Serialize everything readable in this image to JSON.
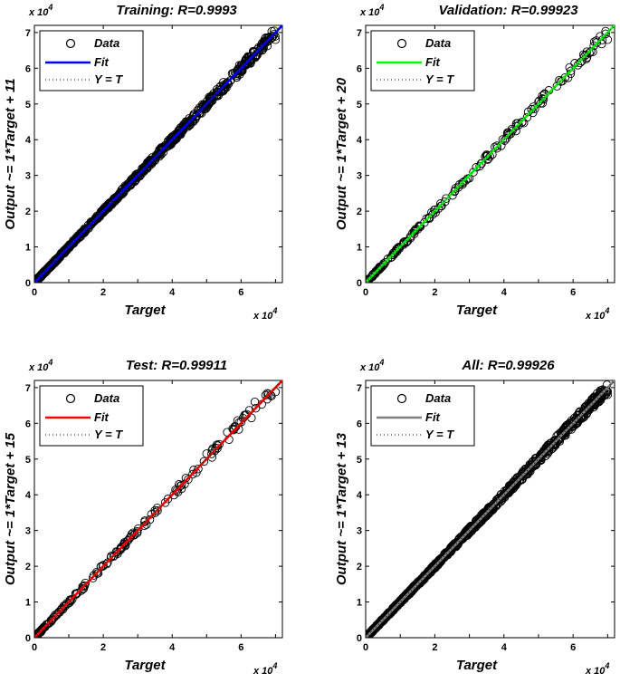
{
  "panels": [
    {
      "title": "Training: R=0.9993",
      "ylabel": "Output ~= 1*Target + 11",
      "xlabel": "Target",
      "x_exponent": "x 10",
      "y_exponent": "x 10",
      "exp_power": "4",
      "fit_color": "#0000ff",
      "legend": [
        "Data",
        "Fit",
        "Y = T"
      ],
      "ticks": [
        "0",
        "1",
        "2",
        "3",
        "4",
        "5",
        "6",
        "7"
      ],
      "xticks": [
        "0",
        "2",
        "4",
        "6"
      ]
    },
    {
      "title": "Validation: R=0.99923",
      "ylabel": "Output ~= 1*Target + 20",
      "xlabel": "Target",
      "x_exponent": "x 10",
      "y_exponent": "x 10",
      "exp_power": "4",
      "fit_color": "#00ff00",
      "legend": [
        "Data",
        "Fit",
        "Y = T"
      ],
      "ticks": [
        "0",
        "1",
        "2",
        "3",
        "4",
        "5",
        "6",
        "7"
      ],
      "xticks": [
        "0",
        "2",
        "4",
        "6"
      ]
    },
    {
      "title": "Test: R=0.99911",
      "ylabel": "Output ~= 1*Target + 15",
      "xlabel": "Target",
      "x_exponent": "x 10",
      "y_exponent": "x 10",
      "exp_power": "4",
      "fit_color": "#ff0000",
      "legend": [
        "Data",
        "Fit",
        "Y = T"
      ],
      "ticks": [
        "0",
        "1",
        "2",
        "3",
        "4",
        "5",
        "6",
        "7"
      ],
      "xticks": [
        "0",
        "2",
        "4",
        "6"
      ]
    },
    {
      "title": "All: R=0.99926",
      "ylabel": "Output ~= 1*Target + 13",
      "xlabel": "Target",
      "x_exponent": "x 10",
      "y_exponent": "x 10",
      "exp_power": "4",
      "fit_color": "#808080",
      "legend": [
        "Data",
        "Fit",
        "Y = T"
      ],
      "ticks": [
        "0",
        "1",
        "2",
        "3",
        "4",
        "5",
        "6",
        "7"
      ],
      "xticks": [
        "0",
        "2",
        "4",
        "6"
      ]
    }
  ],
  "chart_data": [
    {
      "type": "scatter",
      "title": "Training: R=0.9993",
      "xlabel": "Target",
      "ylabel": "Output ~= 1*Target + 11",
      "xlim": [
        0,
        72000
      ],
      "ylim": [
        0,
        72000
      ],
      "series": [
        {
          "name": "Data",
          "points": [
            [
              0,
              0
            ],
            [
              1500,
              1600
            ],
            [
              3000,
              2900
            ],
            [
              5000,
              5200
            ],
            [
              7000,
              6800
            ],
            [
              9000,
              9300
            ],
            [
              11000,
              10800
            ],
            [
              13000,
              13300
            ],
            [
              15000,
              14800
            ],
            [
              17000,
              17200
            ],
            [
              19000,
              19100
            ],
            [
              21000,
              20700
            ],
            [
              23000,
              23300
            ],
            [
              25000,
              25200
            ],
            [
              27000,
              26800
            ],
            [
              29000,
              29300
            ],
            [
              31000,
              30800
            ],
            [
              33000,
              33200
            ],
            [
              35000,
              34900
            ],
            [
              37000,
              37300
            ],
            [
              39000,
              38700
            ],
            [
              41000,
              41400
            ],
            [
              43000,
              42600
            ],
            [
              45000,
              45200
            ],
            [
              47000,
              46700
            ],
            [
              49000,
              49300
            ],
            [
              51000,
              51400
            ],
            [
              53000,
              52500
            ],
            [
              55000,
              55300
            ],
            [
              57000,
              56600
            ],
            [
              59000,
              59400
            ],
            [
              61000,
              60700
            ],
            [
              63000,
              63400
            ],
            [
              65000,
              64500
            ],
            [
              67000,
              67300
            ],
            [
              69000,
              68600
            ],
            [
              70000,
              68000
            ]
          ]
        },
        {
          "name": "Fit",
          "slope": 1,
          "intercept": 11
        },
        {
          "name": "Y = T",
          "slope": 1,
          "intercept": 0
        }
      ]
    },
    {
      "type": "scatter",
      "title": "Validation: R=0.99923",
      "xlabel": "Target",
      "ylabel": "Output ~= 1*Target + 20",
      "xlim": [
        0,
        72000
      ],
      "ylim": [
        0,
        72000
      ],
      "series": [
        {
          "name": "Data",
          "points": [
            [
              0,
              0
            ],
            [
              2000,
              2100
            ],
            [
              5000,
              4800
            ],
            [
              8000,
              8300
            ],
            [
              11000,
              10700
            ],
            [
              14000,
              14300
            ],
            [
              17000,
              16800
            ],
            [
              20000,
              20300
            ],
            [
              23000,
              22700
            ],
            [
              26000,
              26400
            ],
            [
              29000,
              28600
            ],
            [
              32000,
              32300
            ],
            [
              35000,
              35400
            ],
            [
              38000,
              37600
            ],
            [
              41000,
              41500
            ],
            [
              44000,
              44600
            ],
            [
              47000,
              47800
            ],
            [
              50000,
              50600
            ],
            [
              53000,
              53800
            ],
            [
              56000,
              56600
            ],
            [
              59000,
              60200
            ],
            [
              62000,
              61500
            ],
            [
              64000,
              63000
            ],
            [
              66000,
              66300
            ],
            [
              70000,
              68000
            ]
          ]
        },
        {
          "name": "Fit",
          "slope": 1,
          "intercept": 20
        },
        {
          "name": "Y = T",
          "slope": 1,
          "intercept": 0
        }
      ]
    },
    {
      "type": "scatter",
      "title": "Test: R=0.99911",
      "xlabel": "Target",
      "ylabel": "Output ~= 1*Target + 15",
      "xlim": [
        0,
        72000
      ],
      "ylim": [
        0,
        72000
      ],
      "series": [
        {
          "name": "Data",
          "points": [
            [
              0,
              0
            ],
            [
              2000,
              2200
            ],
            [
              5000,
              4800
            ],
            [
              8000,
              8200
            ],
            [
              11000,
              10800
            ],
            [
              14000,
              14300
            ],
            [
              17000,
              16700
            ],
            [
              20000,
              20300
            ],
            [
              23000,
              22800
            ],
            [
              26000,
              26300
            ],
            [
              29000,
              28700
            ],
            [
              32000,
              32400
            ],
            [
              35000,
              35600
            ],
            [
              38000,
              37800
            ],
            [
              41000,
              41400
            ],
            [
              44000,
              44700
            ],
            [
              47000,
              46200
            ],
            [
              50000,
              51500
            ],
            [
              53000,
              54000
            ],
            [
              56000,
              57500
            ],
            [
              59000,
              60800
            ],
            [
              61000,
              62300
            ],
            [
              63000,
              61500
            ],
            [
              64000,
              66000
            ],
            [
              66000,
              65300
            ],
            [
              68000,
              68200
            ],
            [
              70000,
              68800
            ]
          ]
        },
        {
          "name": "Fit",
          "slope": 1,
          "intercept": 15
        },
        {
          "name": "Y = T",
          "slope": 1,
          "intercept": 0
        }
      ]
    },
    {
      "type": "scatter",
      "title": "All: R=0.99926",
      "xlabel": "Target",
      "ylabel": "Output ~= 1*Target + 13",
      "xlim": [
        0,
        72000
      ],
      "ylim": [
        0,
        72000
      ],
      "series": [
        {
          "name": "Data",
          "points": [
            [
              0,
              0
            ],
            [
              1500,
              1600
            ],
            [
              3000,
              2900
            ],
            [
              5000,
              5200
            ],
            [
              7000,
              6800
            ],
            [
              9000,
              9300
            ],
            [
              11000,
              10800
            ],
            [
              13000,
              13300
            ],
            [
              15000,
              14800
            ],
            [
              17000,
              17200
            ],
            [
              19000,
              19100
            ],
            [
              21000,
              20700
            ],
            [
              23000,
              23300
            ],
            [
              25000,
              25200
            ],
            [
              27000,
              26800
            ],
            [
              29000,
              29300
            ],
            [
              31000,
              30800
            ],
            [
              33000,
              33200
            ],
            [
              35000,
              34900
            ],
            [
              37000,
              37300
            ],
            [
              39000,
              38700
            ],
            [
              41000,
              41400
            ],
            [
              43000,
              42600
            ],
            [
              45000,
              45200
            ],
            [
              47000,
              46700
            ],
            [
              49000,
              49300
            ],
            [
              51000,
              51400
            ],
            [
              53000,
              52500
            ],
            [
              55000,
              55300
            ],
            [
              57000,
              56600
            ],
            [
              59000,
              59400
            ],
            [
              61000,
              60700
            ],
            [
              63000,
              63400
            ],
            [
              65000,
              64500
            ],
            [
              67000,
              67300
            ],
            [
              69000,
              68600
            ],
            [
              70000,
              68000
            ]
          ]
        },
        {
          "name": "Fit",
          "slope": 1,
          "intercept": 13
        },
        {
          "name": "Y = T",
          "slope": 1,
          "intercept": 0
        }
      ]
    }
  ]
}
